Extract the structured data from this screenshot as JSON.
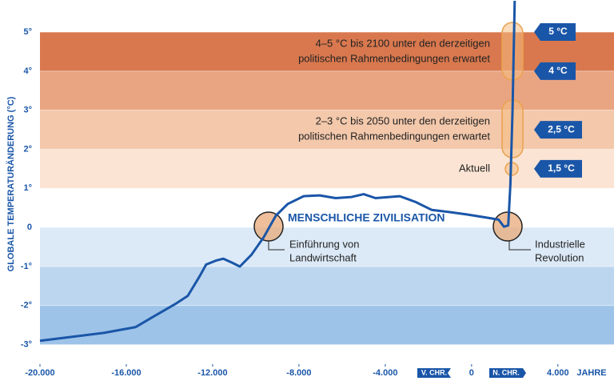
{
  "chart_data": {
    "type": "line",
    "y_label": "GLOBALE TEMPERATURÄNDERUNG (°C)",
    "x_label": "JAHRE",
    "xlim": [
      -20000,
      6600
    ],
    "ylim": [
      -3.5,
      5.8
    ],
    "xticks": [
      {
        "value": -20000,
        "label": "-20.000"
      },
      {
        "value": -16000,
        "label": "-16.000"
      },
      {
        "value": -12000,
        "label": "-12.000"
      },
      {
        "value": -8000,
        "label": "-8.000"
      },
      {
        "value": -4000,
        "label": "-4.000"
      },
      0,
      {
        "value": 4000,
        "label": "4.000"
      }
    ],
    "yticks": [
      {
        "value": -3,
        "label": "-3°"
      },
      {
        "value": -2,
        "label": "-2°"
      },
      {
        "value": -1,
        "label": "-1°"
      },
      0,
      {
        "value": 1,
        "label": "1°"
      },
      {
        "value": 2,
        "label": "2°"
      },
      {
        "value": 3,
        "label": "3°"
      },
      {
        "value": 4,
        "label": "4°"
      },
      {
        "value": 5,
        "label": "5°"
      }
    ],
    "bands": [
      {
        "from": 4,
        "to": 5,
        "color": "#d9784e"
      },
      {
        "from": 3,
        "to": 4,
        "color": "#e9a582"
      },
      {
        "from": 2,
        "to": 3,
        "color": "#f3c8ab"
      },
      {
        "from": 1,
        "to": 2,
        "color": "#fbe4d3"
      },
      {
        "from": 0,
        "to": -1,
        "color": "#dce9f7"
      },
      {
        "from": -1,
        "to": -2,
        "color": "#bdd6ef"
      },
      {
        "from": -2,
        "to": -3,
        "color": "#9dc3e8"
      }
    ],
    "series": [
      {
        "color": "#1a56a8",
        "x": [
          -20000,
          -18500,
          -17040,
          -15560,
          -14800,
          -13700,
          -13150,
          -12600,
          -12300,
          -11850,
          -11500,
          -11100,
          -10740,
          -10200,
          -9630,
          -9070,
          -8520,
          -7780,
          -7040,
          -6300,
          -5560,
          -5000,
          -4450,
          -3330,
          -2590,
          -1850,
          -1110,
          -200,
          700,
          1250,
          1500,
          1700,
          1800,
          1900,
          2000
        ],
        "values": [
          -2.9,
          -2.8,
          -2.7,
          -2.55,
          -2.3,
          -1.95,
          -1.75,
          -1.25,
          -0.95,
          -0.85,
          -0.8,
          -0.9,
          -1.0,
          -0.7,
          -0.25,
          0.3,
          0.6,
          0.8,
          0.82,
          0.75,
          0.78,
          0.85,
          0.75,
          0.8,
          0.65,
          0.45,
          0.4,
          0.33,
          0.25,
          0.2,
          0.02,
          0.05,
          1.1,
          3.0,
          5.8
        ]
      }
    ],
    "markers": [
      {
        "value": 5,
        "label": "5 °C"
      },
      {
        "value": 4,
        "label": "4 °C"
      },
      {
        "value": 2.5,
        "label": "2,5 °C"
      },
      {
        "value": 1.5,
        "label": "1,5 °C"
      }
    ],
    "era_labels": [
      "V. CHR.",
      "N. CHR."
    ],
    "annotations": {
      "projection_2100": [
        "4–5 °C bis 2100 unter den derzeitigen",
        "politischen Rahmenbedingungen erwartet"
      ],
      "projection_2050": [
        "2–3 °C bis 2050 unter den derzeitigen",
        "politischen Rahmenbedingungen erwartet"
      ],
      "current": "Aktuell",
      "civilisation": "MENSCHLICHE ZIVILISATION",
      "agriculture": [
        "Einführung von",
        "Landwirtschaft"
      ],
      "industrial": [
        "Industrielle",
        "Revolution"
      ]
    }
  }
}
